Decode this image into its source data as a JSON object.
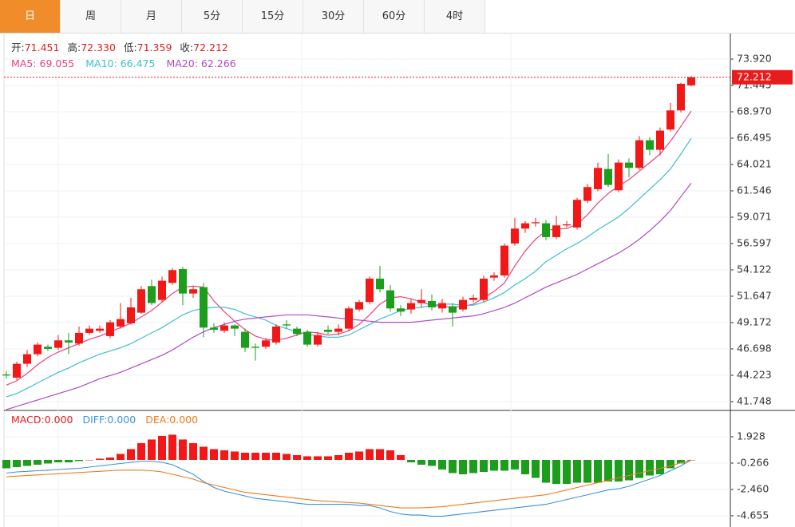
{
  "tabs": [
    "日",
    "周",
    "月",
    "5分",
    "15分",
    "30分",
    "60分",
    "4时"
  ],
  "chart_data": [
    {
      "type": "candlestick",
      "header": [
        {
          "label": "开:",
          "value": "71.451"
        },
        {
          "label": "高:",
          "value": "72.330"
        },
        {
          "label": "低:",
          "value": "71.359"
        },
        {
          "label": "收:",
          "value": "72.212"
        }
      ],
      "ma_header": [
        {
          "label": "MA5:",
          "value": "69.055"
        },
        {
          "label": "MA10:",
          "value": "66.475"
        },
        {
          "label": "MA20:",
          "value": "62.266"
        }
      ],
      "up_color": "#f21818",
      "down_color": "#1c9e1c",
      "open": [
        44.3,
        44.0,
        45.3,
        46.2,
        46.9,
        46.8,
        47.5,
        47.2,
        48.2,
        48.4,
        47.9,
        48.8,
        49.1,
        50.1,
        52.6,
        51.3,
        52.9,
        54.2,
        51.9,
        52.5,
        48.7,
        48.4,
        48.9,
        48.3,
        46.9,
        46.9,
        47.3,
        49.0,
        48.6,
        48.3,
        47.1,
        48.5,
        48.3,
        48.6,
        50.4,
        51.1,
        53.3,
        52.2,
        50.5,
        50.4,
        51.0,
        51.2,
        50.5,
        50.7,
        50.4,
        51.3,
        51.3,
        53.4,
        53.6,
        56.6,
        58.0,
        58.5,
        58.5,
        57.2,
        58.3,
        58.1,
        60.6,
        61.7,
        63.6,
        61.6,
        64.2,
        63.7,
        66.3,
        65.4,
        67.3,
        69.1,
        71.451
      ],
      "high": [
        44.6,
        45.5,
        46.6,
        47.3,
        47.1,
        48.0,
        48.2,
        48.8,
        48.9,
        48.9,
        49.4,
        51.0,
        51.5,
        52.6,
        53.2,
        53.5,
        54.3,
        54.4,
        52.6,
        52.9,
        49.1,
        49.2,
        49.0,
        48.6,
        47.2,
        47.7,
        49.0,
        49.4,
        48.8,
        48.5,
        48.3,
        48.9,
        49.0,
        50.7,
        51.3,
        53.5,
        54.5,
        52.7,
        50.8,
        51.4,
        52.3,
        51.8,
        51.4,
        51.0,
        51.6,
        51.8,
        53.6,
        53.9,
        56.6,
        59.0,
        58.7,
        59.0,
        58.8,
        59.2,
        58.7,
        60.9,
        62.2,
        64.2,
        65.0,
        64.5,
        64.6,
        66.7,
        66.6,
        67.5,
        69.8,
        71.7,
        72.33
      ],
      "low": [
        43.9,
        43.8,
        45.0,
        46.0,
        46.5,
        46.6,
        46.2,
        47.0,
        48.0,
        48.2,
        47.7,
        48.6,
        49.0,
        50.0,
        50.8,
        51.1,
        52.7,
        50.8,
        51.5,
        47.8,
        48.2,
        48.2,
        47.9,
        46.4,
        45.6,
        46.7,
        47.1,
        48.6,
        47.9,
        46.9,
        46.9,
        48.1,
        48.0,
        48.4,
        50.2,
        50.9,
        52.0,
        50.2,
        49.8,
        50.0,
        50.6,
        50.3,
        50.1,
        48.8,
        50.2,
        51.1,
        51.1,
        53.1,
        53.4,
        56.4,
        57.6,
        58.2,
        56.9,
        57.0,
        58.1,
        57.9,
        60.4,
        61.5,
        61.9,
        61.4,
        62.8,
        63.5,
        64.9,
        64.9,
        67.1,
        68.9,
        71.359
      ],
      "close": [
        44.2,
        45.3,
        46.2,
        47.1,
        46.7,
        47.5,
        47.3,
        48.2,
        48.6,
        48.6,
        49.2,
        49.5,
        50.6,
        52.3,
        51.0,
        53.1,
        54.1,
        51.9,
        52.3,
        48.7,
        48.5,
        48.9,
        48.6,
        46.8,
        46.8,
        47.5,
        48.8,
        48.9,
        48.1,
        47.1,
        48.0,
        48.3,
        48.6,
        50.5,
        51.1,
        53.3,
        52.3,
        50.5,
        50.2,
        51.0,
        51.3,
        50.6,
        51.0,
        50.1,
        51.3,
        51.5,
        53.3,
        53.6,
        56.4,
        58.0,
        58.5,
        58.6,
        57.2,
        58.3,
        58.4,
        60.7,
        61.9,
        63.7,
        62.1,
        64.2,
        63.7,
        66.3,
        65.4,
        67.2,
        69.1,
        71.6,
        72.212
      ],
      "series": [
        {
          "color": "#e8437e",
          "values": [
            43.3,
            43.7,
            44.4,
            45.2,
            45.9,
            46.4,
            46.8,
            47.2,
            47.6,
            47.9,
            48.3,
            48.7,
            49.1,
            49.7,
            50.3,
            51.1,
            51.9,
            52.5,
            52.6,
            52.5,
            51.2,
            50.2,
            49.3,
            48.5,
            47.9,
            47.6,
            47.5,
            47.7,
            48.0,
            48.3,
            48.2,
            48.0,
            48.1,
            48.4,
            49.0,
            49.9,
            50.9,
            51.5,
            51.6,
            51.4,
            51.1,
            50.8,
            50.7,
            50.6,
            50.7,
            50.9,
            51.5,
            52.1,
            52.9,
            54.5,
            55.9,
            57.0,
            57.8,
            58.0,
            58.0,
            58.4,
            59.3,
            60.4,
            61.3,
            62.0,
            62.6,
            63.4,
            64.2,
            65.0,
            66.2,
            67.6,
            69.055
          ]
        },
        {
          "color": "#3cbfd2",
          "values": [
            42.2,
            42.5,
            43.0,
            43.5,
            44.0,
            44.5,
            44.9,
            45.4,
            45.8,
            46.2,
            46.5,
            46.8,
            47.2,
            47.7,
            48.2,
            48.7,
            49.3,
            49.9,
            50.3,
            50.5,
            50.6,
            50.6,
            50.4,
            50.0,
            49.7,
            49.4,
            48.9,
            48.6,
            48.3,
            48.1,
            47.9,
            47.8,
            47.8,
            48.0,
            48.5,
            49.0,
            49.5,
            49.9,
            50.3,
            50.5,
            50.6,
            50.8,
            50.9,
            50.9,
            50.8,
            50.8,
            51.1,
            51.5,
            52.0,
            52.7,
            53.3,
            54.0,
            54.9,
            55.5,
            56.1,
            56.6,
            57.2,
            57.9,
            58.5,
            59.1,
            59.9,
            60.8,
            61.7,
            62.6,
            63.6,
            65.0,
            66.475
          ]
        },
        {
          "color": "#b04ac6",
          "values": [
            41.0,
            41.3,
            41.6,
            41.9,
            42.2,
            42.5,
            42.8,
            43.1,
            43.5,
            43.9,
            44.2,
            44.5,
            44.9,
            45.3,
            45.7,
            46.1,
            46.6,
            47.2,
            47.8,
            48.3,
            48.7,
            49.0,
            49.3,
            49.5,
            49.6,
            49.7,
            49.8,
            49.9,
            49.9,
            49.9,
            49.8,
            49.7,
            49.6,
            49.5,
            49.4,
            49.3,
            49.2,
            49.2,
            49.2,
            49.2,
            49.3,
            49.4,
            49.5,
            49.6,
            49.7,
            49.8,
            50.0,
            50.3,
            50.6,
            51.0,
            51.5,
            52.0,
            52.5,
            52.9,
            53.3,
            53.7,
            54.2,
            54.7,
            55.2,
            55.7,
            56.3,
            57.0,
            57.8,
            58.7,
            59.7,
            61.0,
            62.266
          ]
        }
      ],
      "ylim": [
        41.07,
        76.32
      ],
      "yticks": [
        {
          "value": 41.748,
          "label": "41.748"
        },
        {
          "value": 44.223,
          "label": "44.223"
        },
        {
          "value": 46.698,
          "label": "46.698"
        },
        {
          "value": 49.172,
          "label": "49.172"
        },
        {
          "value": 51.647,
          "label": "51.647"
        },
        {
          "value": 54.122,
          "label": "54.122"
        },
        {
          "value": 56.597,
          "label": "56.597"
        },
        {
          "value": 59.071,
          "label": "59.071"
        },
        {
          "value": 61.546,
          "label": "61.546"
        },
        {
          "value": 64.021,
          "label": "64.021"
        },
        {
          "value": 66.495,
          "label": "66.495"
        },
        {
          "value": 68.97,
          "label": "68.970"
        },
        {
          "value": 71.445,
          "label": "71.445"
        },
        {
          "value": 73.92,
          "label": "73.920"
        }
      ],
      "current_price": {
        "value": 72.212,
        "label": "72.212",
        "color": "#e81c1c"
      },
      "grid": true
    },
    {
      "type": "macd",
      "header": [
        {
          "label": "MACD:",
          "value": "0.000",
          "color": "#e81c1c"
        },
        {
          "label": "DIFF:",
          "value": "0.000",
          "color": "#3a93de"
        },
        {
          "label": "DEA:",
          "value": "0.000",
          "color": "#ef7a1c"
        }
      ],
      "up_color": "#f21818",
      "down_color": "#1c9e1c",
      "series": [
        {
          "type": "bar",
          "values": [
            -0.7,
            -0.6,
            -0.5,
            -0.4,
            -0.3,
            -0.2,
            -0.2,
            -0.1,
            0.0,
            0.1,
            0.2,
            0.5,
            0.9,
            1.4,
            1.7,
            2.0,
            2.1,
            1.7,
            1.4,
            1.1,
            0.9,
            0.8,
            0.7,
            0.6,
            0.6,
            0.6,
            0.6,
            0.5,
            0.4,
            0.3,
            0.3,
            0.3,
            0.4,
            0.6,
            0.7,
            0.9,
            0.9,
            0.8,
            0.4,
            -0.2,
            -0.4,
            -0.5,
            -0.8,
            -1.1,
            -1.2,
            -1.1,
            -1.0,
            -0.9,
            -0.9,
            -0.8,
            -1.2,
            -1.5,
            -1.9,
            -2.0,
            -2.0,
            -1.9,
            -1.9,
            -1.9,
            -1.8,
            -1.8,
            -1.7,
            -1.5,
            -1.3,
            -1.2,
            -0.7,
            -0.3,
            0.0
          ]
        },
        {
          "type": "line",
          "color": "#3a93de",
          "values": [
            -1.1,
            -1.0,
            -0.95,
            -0.9,
            -0.85,
            -0.8,
            -0.75,
            -0.7,
            -0.6,
            -0.5,
            -0.4,
            -0.3,
            -0.2,
            -0.1,
            -0.1,
            -0.2,
            -0.4,
            -0.8,
            -1.2,
            -1.8,
            -2.3,
            -2.6,
            -2.8,
            -3.0,
            -3.2,
            -3.3,
            -3.4,
            -3.5,
            -3.6,
            -3.7,
            -3.7,
            -3.7,
            -3.7,
            -3.7,
            -3.8,
            -3.8,
            -4.0,
            -4.3,
            -4.5,
            -4.6,
            -4.6,
            -4.7,
            -4.7,
            -4.6,
            -4.5,
            -4.4,
            -4.3,
            -4.2,
            -4.1,
            -4.0,
            -3.9,
            -3.8,
            -3.7,
            -3.5,
            -3.3,
            -3.1,
            -2.9,
            -2.7,
            -2.5,
            -2.4,
            -2.2,
            -1.9,
            -1.6,
            -1.3,
            -0.9,
            -0.5,
            0.0
          ]
        },
        {
          "type": "line",
          "color": "#ef7a1c",
          "values": [
            -1.4,
            -1.35,
            -1.3,
            -1.25,
            -1.2,
            -1.15,
            -1.1,
            -1.05,
            -1.0,
            -0.95,
            -0.9,
            -0.85,
            -0.85,
            -0.85,
            -0.9,
            -1.0,
            -1.2,
            -1.4,
            -1.6,
            -1.9,
            -2.1,
            -2.3,
            -2.5,
            -2.7,
            -2.8,
            -2.9,
            -3.0,
            -3.1,
            -3.2,
            -3.3,
            -3.4,
            -3.45,
            -3.5,
            -3.55,
            -3.6,
            -3.7,
            -3.8,
            -3.9,
            -4.0,
            -4.0,
            -4.0,
            -3.95,
            -3.9,
            -3.8,
            -3.7,
            -3.6,
            -3.5,
            -3.4,
            -3.3,
            -3.2,
            -3.1,
            -3.0,
            -2.9,
            -2.7,
            -2.5,
            -2.3,
            -2.1,
            -1.9,
            -1.7,
            -1.5,
            -1.3,
            -1.1,
            -0.9,
            -0.7,
            -0.5,
            -0.25,
            0.0
          ]
        }
      ],
      "ylim": [
        -5.59,
        3.99
      ],
      "yticks": [
        {
          "value": -4.655,
          "label": "-4.655"
        },
        {
          "value": -2.46,
          "label": "-2.460"
        },
        {
          "value": -0.266,
          "label": "-0.266"
        },
        {
          "value": 1.928,
          "label": "1.928"
        }
      ],
      "grid": true
    }
  ]
}
